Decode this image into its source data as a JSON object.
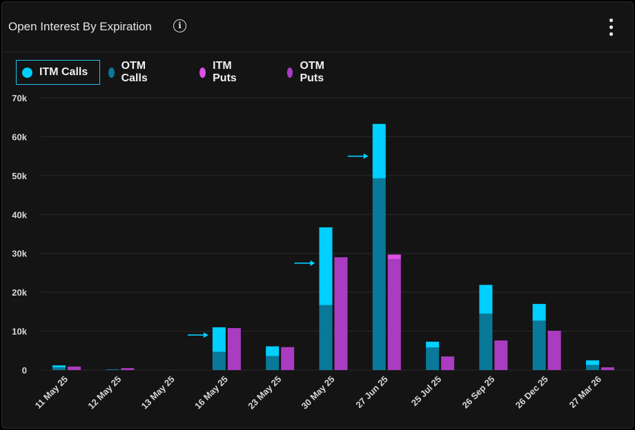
{
  "header": {
    "title": "Open Interest By Expiration",
    "info_icon": "info-icon",
    "menu_icon": "more-vertical-icon"
  },
  "colors": {
    "itm_calls": "#00cfff",
    "otm_calls": "#0a7898",
    "itm_puts": "#dd4fe8",
    "otm_puts": "#a93cc0",
    "background": "#141414",
    "grid": "#2a2a2a"
  },
  "legend": [
    {
      "label": "ITM Calls",
      "color": "#00cfff",
      "active": true
    },
    {
      "label": "OTM Calls",
      "color": "#0a7898",
      "active": false
    },
    {
      "label": "ITM Puts",
      "color": "#dd4fe8",
      "active": false
    },
    {
      "label": "OTM Puts",
      "color": "#a93cc0",
      "active": false
    }
  ],
  "chart_data": {
    "type": "bar",
    "stacked": true,
    "categories": [
      "11 May 25",
      "12 May 25",
      "13 May 25",
      "16 May 25",
      "23 May 25",
      "30 May 25",
      "27 Jun 25",
      "25 Jul 25",
      "26 Sep 25",
      "26 Dec 25",
      "27 Mar 26"
    ],
    "series": [
      {
        "name": "ITM Calls",
        "stack": "calls",
        "values": [
          500,
          0,
          0,
          6300,
          2500,
          20000,
          14000,
          1500,
          7400,
          4300,
          1200
        ]
      },
      {
        "name": "OTM Calls",
        "stack": "calls",
        "values": [
          700,
          200,
          0,
          4700,
          3600,
          16700,
          49300,
          5800,
          14500,
          12700,
          1300
        ]
      },
      {
        "name": "ITM Puts",
        "stack": "puts",
        "values": [
          0,
          0,
          0,
          0,
          0,
          0,
          1200,
          0,
          0,
          0,
          0
        ]
      },
      {
        "name": "OTM Puts",
        "stack": "puts",
        "values": [
          900,
          500,
          0,
          10800,
          5900,
          29000,
          28500,
          3500,
          7600,
          10100,
          700
        ]
      }
    ],
    "ylim": [
      0,
      70000
    ],
    "yticks": [
      "0",
      "10k",
      "20k",
      "30k",
      "40k",
      "50k",
      "60k",
      "70k"
    ],
    "ytick_values": [
      0,
      10000,
      20000,
      30000,
      40000,
      50000,
      60000,
      70000
    ],
    "annotations": [
      {
        "type": "arrow",
        "category": "16 May 25",
        "value": 9000
      },
      {
        "type": "arrow",
        "category": "30 May 25",
        "value": 27500
      },
      {
        "type": "arrow",
        "category": "27 Jun 25",
        "value": 55000
      }
    ],
    "grid": true
  }
}
